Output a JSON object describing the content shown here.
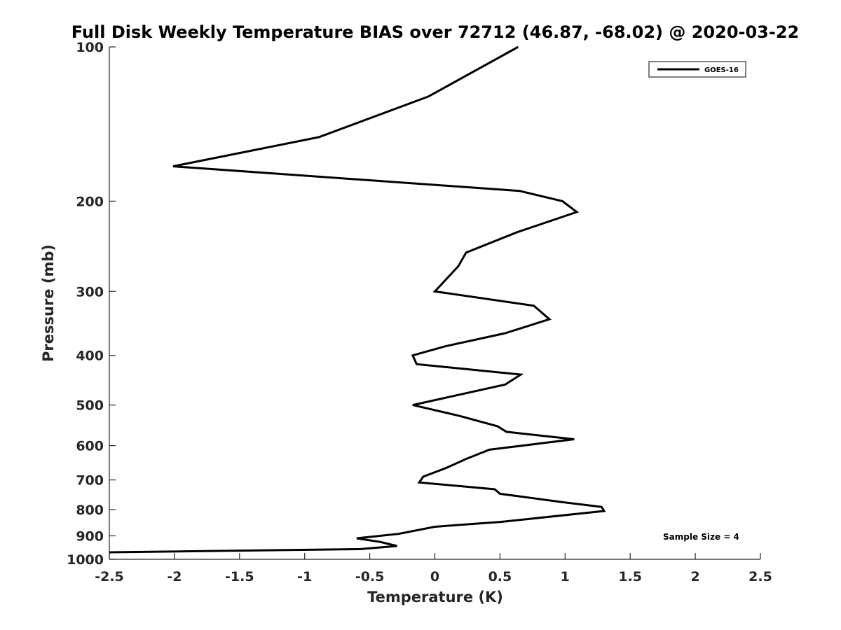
{
  "chart_data": {
    "type": "line",
    "title": "Full Disk Weekly Temperature BIAS over 72712 (46.87, -68.02) @ 2020-03-22",
    "xlabel": "Temperature (K)",
    "ylabel": "Pressure (mb)",
    "xlim": [
      -2.5,
      2.5
    ],
    "ylim": [
      100,
      1000
    ],
    "y_scale": "log",
    "y_reversed": true,
    "x_ticks": [
      "-2.5",
      "-2",
      "-1.5",
      "-1",
      "-0.5",
      "0",
      "0.5",
      "1",
      "1.5",
      "2",
      "2.5"
    ],
    "y_ticks": [
      "100",
      "200",
      "300",
      "400",
      "500",
      "600",
      "700",
      "800",
      "900",
      "1000"
    ],
    "grid": false,
    "legend": {
      "position": "top-right",
      "entries": [
        "GOES-16"
      ]
    },
    "annotation": "Sample Size = 4",
    "line_color": "#000000",
    "series": [
      {
        "name": "GOES-16",
        "x": [
          0.64,
          -0.05,
          -0.89,
          -2.01,
          0.65,
          0.98,
          1.09,
          0.63,
          0.24,
          0.18,
          0.0,
          0.76,
          0.88,
          0.54,
          0.08,
          -0.17,
          -0.14,
          0.66,
          0.54,
          -0.17,
          0.19,
          0.48,
          0.55,
          1.07,
          0.42,
          0.24,
          0.09,
          -0.09,
          -0.12,
          0.46,
          0.5,
          0.97,
          1.28,
          1.3,
          0.51,
          0.0,
          -0.28,
          -0.6,
          -0.42,
          -0.29,
          -0.57,
          -2.5
        ],
        "y": [
          100,
          125,
          150,
          171,
          191,
          200,
          210,
          230,
          252,
          268,
          300,
          320,
          340,
          362,
          384,
          400,
          416,
          436,
          456,
          500,
          525,
          550,
          564,
          583,
          611,
          637,
          663,
          690,
          708,
          730,
          745,
          773,
          790,
          805,
          845,
          864,
          892,
          910,
          925,
          942,
          955,
          969
        ]
      }
    ]
  }
}
